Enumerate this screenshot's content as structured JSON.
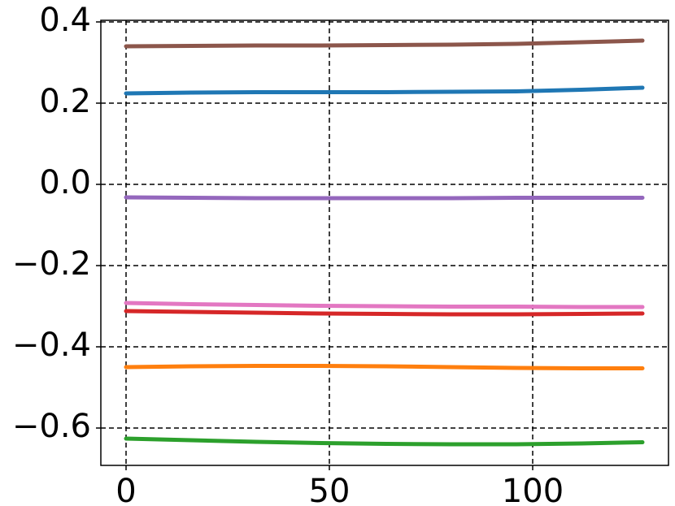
{
  "chart_data": {
    "type": "line",
    "x": [
      0,
      16,
      32,
      48,
      64,
      80,
      96,
      112,
      127
    ],
    "series": [
      {
        "color": "#8c564b",
        "values": [
          0.34,
          0.341,
          0.342,
          0.342,
          0.343,
          0.344,
          0.346,
          0.35,
          0.354
        ]
      },
      {
        "color": "#1f77b4",
        "values": [
          0.224,
          0.226,
          0.227,
          0.227,
          0.227,
          0.228,
          0.229,
          0.233,
          0.238
        ]
      },
      {
        "color": "#9467bd",
        "values": [
          -0.032,
          -0.033,
          -0.034,
          -0.034,
          -0.034,
          -0.034,
          -0.033,
          -0.033,
          -0.033
        ]
      },
      {
        "color": "#e377c2",
        "values": [
          -0.292,
          -0.295,
          -0.297,
          -0.299,
          -0.3,
          -0.301,
          -0.301,
          -0.302,
          -0.302
        ]
      },
      {
        "color": "#d62728",
        "values": [
          -0.312,
          -0.314,
          -0.316,
          -0.318,
          -0.319,
          -0.32,
          -0.32,
          -0.319,
          -0.318
        ]
      },
      {
        "color": "#ff7f0e",
        "values": [
          -0.45,
          -0.448,
          -0.447,
          -0.447,
          -0.448,
          -0.45,
          -0.452,
          -0.453,
          -0.453
        ]
      },
      {
        "color": "#2ca02c",
        "values": [
          -0.626,
          -0.63,
          -0.634,
          -0.637,
          -0.639,
          -0.64,
          -0.64,
          -0.638,
          -0.635
        ]
      }
    ],
    "xlim": [
      -6.2,
      133.4
    ],
    "xticks": [
      0,
      50,
      100
    ],
    "ylim": [
      -0.692,
      0.404
    ],
    "yticks": [
      {
        "value": -0.6,
        "label": "−0.6"
      },
      {
        "value": -0.4,
        "label": "−0.4"
      },
      {
        "value": -0.2,
        "label": "−0.2"
      },
      {
        "value": 0,
        "label": "0.0"
      },
      0.2,
      0.4
    ],
    "grid": true
  }
}
